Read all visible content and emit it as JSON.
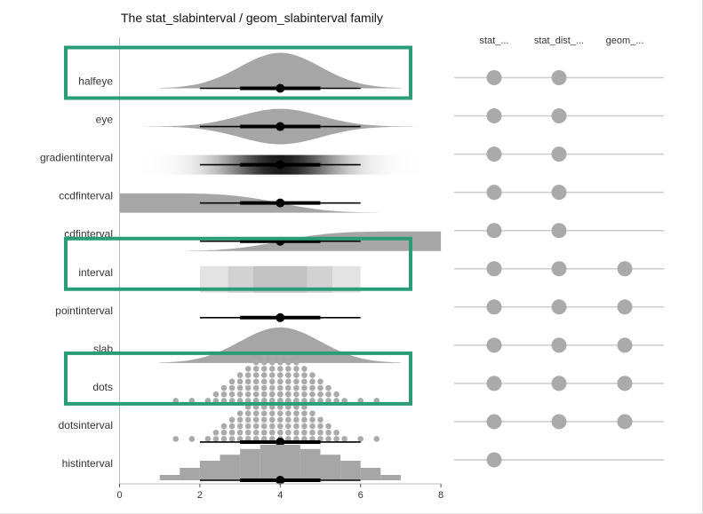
{
  "chart_data": {
    "type": "other",
    "title": "The stat_slabinterval / geom_slabinterval family",
    "rows": [
      "halfeye",
      "eye",
      "gradientinterval",
      "ccdfinterval",
      "cdfinterval",
      "interval",
      "pointinterval",
      "slab",
      "dots",
      "dotsinterval",
      "histinterval"
    ],
    "highlighted_rows": [
      "halfeye",
      "interval",
      "dots"
    ],
    "distribution": {
      "mean": 4,
      "sd": 1
    },
    "point_estimate": 4,
    "intervals": [
      {
        "level": 0.66,
        "lower": 3.0,
        "upper": 5.0
      },
      {
        "level": 0.95,
        "lower": 2.0,
        "upper": 6.0
      }
    ],
    "interval_rectangles": [
      2.0,
      2.7,
      3.33,
      4.67,
      5.3,
      6.0
    ],
    "x_ticks": [
      0,
      2,
      4,
      6,
      8
    ],
    "xlim": [
      0,
      8
    ],
    "availability": {
      "columns": [
        "stat_...",
        "stat_dist_...",
        "geom_..."
      ],
      "rows": [
        {
          "row": "halfeye",
          "flags": [
            true,
            true,
            false
          ]
        },
        {
          "row": "eye",
          "flags": [
            true,
            true,
            false
          ]
        },
        {
          "row": "gradientinterval",
          "flags": [
            true,
            true,
            false
          ]
        },
        {
          "row": "ccdfinterval",
          "flags": [
            true,
            true,
            false
          ]
        },
        {
          "row": "cdfinterval",
          "flags": [
            true,
            true,
            false
          ]
        },
        {
          "row": "interval",
          "flags": [
            true,
            true,
            true
          ]
        },
        {
          "row": "pointinterval",
          "flags": [
            true,
            true,
            true
          ]
        },
        {
          "row": "slab",
          "flags": [
            true,
            true,
            true
          ]
        },
        {
          "row": "dots",
          "flags": [
            true,
            true,
            true
          ]
        },
        {
          "row": "dotsinterval",
          "flags": [
            true,
            true,
            true
          ]
        },
        {
          "row": "histinterval",
          "flags": [
            true,
            false,
            false
          ]
        }
      ]
    },
    "colors": {
      "slab": "#a6a6a6",
      "interval": "#000000",
      "highlight": "#2a9d78",
      "dot": "#aaaaaa",
      "line": "#cccccc"
    }
  }
}
